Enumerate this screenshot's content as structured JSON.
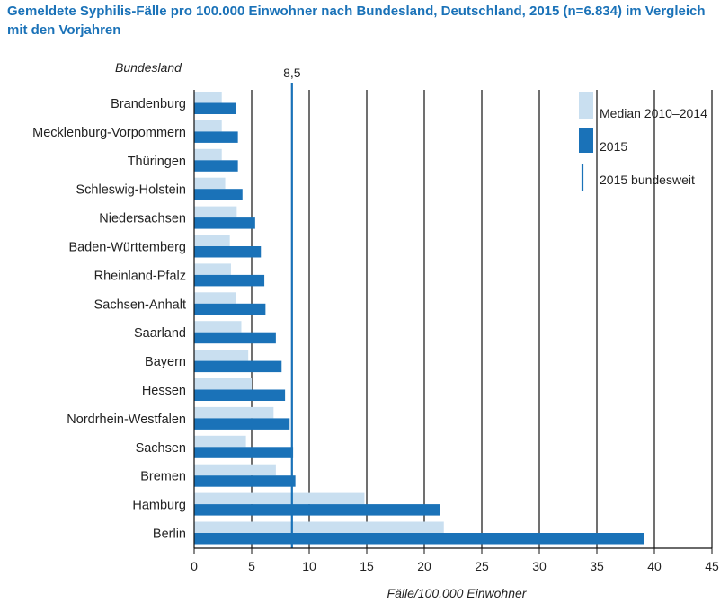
{
  "title": "Gemeldete Syphilis-Fälle pro 100.000 Einwohner nach Bundesland, Deutschland, 2015 (n=6.834) im Vergleich mit den Vorjahren",
  "chart_data": {
    "type": "bar",
    "orientation": "horizontal",
    "categories": [
      "Brandenburg",
      "Mecklenburg-Vorpommern",
      "Thüringen",
      "Schleswig-Holstein",
      "Niedersachsen",
      "Baden-Württemberg",
      "Rheinland-Pfalz",
      "Sachsen-Anhalt",
      "Saarland",
      "Bayern",
      "Hessen",
      "Nordrhein-Westfalen",
      "Sachsen",
      "Bremen",
      "Hamburg",
      "Berlin"
    ],
    "series": [
      {
        "name": "Median 2010–2014",
        "color": "#c9dff0",
        "values": [
          2.4,
          2.4,
          2.4,
          2.7,
          3.7,
          3.1,
          3.2,
          3.6,
          4.1,
          4.7,
          5.0,
          6.9,
          4.5,
          7.1,
          14.8,
          21.7
        ]
      },
      {
        "name": "2015",
        "color": "#1a72b8",
        "values": [
          3.6,
          3.8,
          3.8,
          4.2,
          5.3,
          5.8,
          6.1,
          6.2,
          7.1,
          7.6,
          7.9,
          8.3,
          8.6,
          8.8,
          21.4,
          39.1
        ]
      }
    ],
    "reference_line": {
      "name": "2015 bundesweit",
      "value": 8.5,
      "label": "8,5",
      "color": "#1a72b8"
    },
    "xlim": [
      0,
      45
    ],
    "xticks": [
      0,
      5,
      10,
      15,
      20,
      25,
      30,
      35,
      40,
      45
    ],
    "xlabel": "Fälle/100.000 Einwohner",
    "ylabel": "Bundesland",
    "grid": "vertical",
    "legend_position": "top-right"
  }
}
